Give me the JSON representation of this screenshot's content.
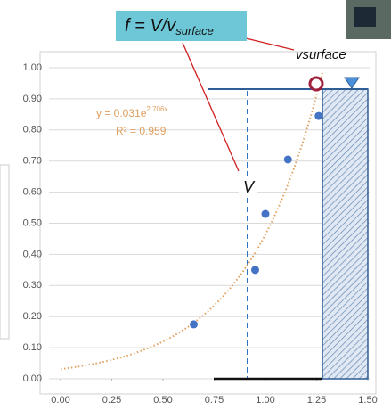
{
  "chart_data": {
    "type": "scatter",
    "x": [
      0.65,
      0.95,
      1.0,
      1.11,
      1.26
    ],
    "values": [
      0.175,
      0.35,
      0.53,
      0.705,
      0.845
    ],
    "color": "#4472c4",
    "xlim": [
      0,
      1.5
    ],
    "ylim": [
      0,
      1.0
    ],
    "xticks": [
      {
        "value": 0,
        "label": "0.00"
      },
      {
        "value": 0.25,
        "label": "0.25"
      },
      {
        "value": 0.5,
        "label": "0.50"
      },
      {
        "value": 0.75,
        "label": "0.75"
      },
      {
        "value": 1.0,
        "label": "1.00"
      },
      {
        "value": 1.25,
        "label": "1.25"
      },
      {
        "value": 1.5,
        "label": "1.50"
      }
    ],
    "yticks": [
      {
        "value": 0,
        "label": "0.00"
      },
      {
        "value": 0.1,
        "label": "0.10"
      },
      {
        "value": 0.2,
        "label": "0.20"
      },
      {
        "value": 0.3,
        "label": "0.30"
      },
      {
        "value": 0.4,
        "label": "0.40"
      },
      {
        "value": 0.5,
        "label": "0.50"
      },
      {
        "value": 0.6,
        "label": "0.60"
      },
      {
        "value": 0.7,
        "label": "0.70"
      },
      {
        "value": 0.8,
        "label": "0.80"
      },
      {
        "value": 0.9,
        "label": "0.90"
      },
      {
        "value": 1.0,
        "label": "1.00"
      }
    ],
    "grid": true,
    "trendline": {
      "a": 0.031,
      "b": 2.706,
      "color": "#e0a060"
    },
    "equation": "y = 0.031e",
    "equation_exponent": "2.706x",
    "r_squared": "R² = 0.959",
    "f_label": "f = V/v",
    "f_label_subscript": "surface",
    "v_label": "V",
    "vsurface_label": "vsurface"
  }
}
